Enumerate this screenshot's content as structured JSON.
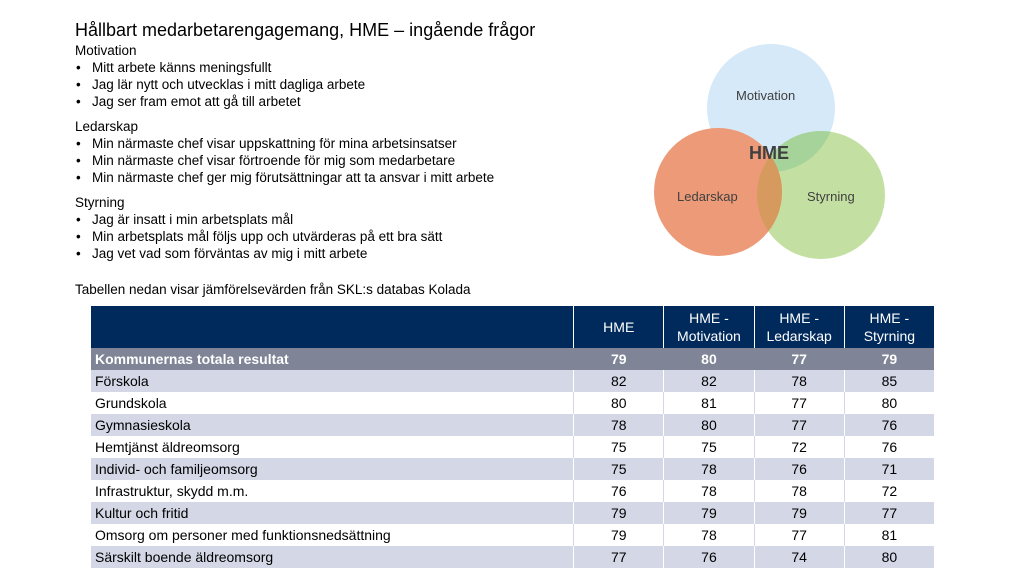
{
  "title": "Hållbart medarbetarengagemang, HME – ingående frågor",
  "sections": [
    {
      "heading": "Motivation",
      "items": [
        "Mitt arbete känns meningsfullt",
        "Jag lär nytt och utvecklas i mitt dagliga arbete",
        "Jag ser fram emot att gå till arbetet"
      ]
    },
    {
      "heading": "Ledarskap",
      "items": [
        "Min närmaste chef visar uppskattning för mina arbetsinsatser",
        "Min närmaste chef visar förtroende för mig som medarbetare",
        "Min närmaste chef ger mig förutsättningar att ta ansvar i mitt arbete"
      ]
    },
    {
      "heading": "Styrning",
      "items": [
        "Jag är insatt i min arbetsplats mål",
        "Min arbetsplats mål följs upp och utvärderas på ett bra sätt",
        "Jag vet vad som förväntas av mig i mitt arbete"
      ]
    }
  ],
  "note": "Tabellen nedan visar jämförelsevärden från SKL:s databas Kolada",
  "venn": {
    "motivation": "Motivation",
    "ledarskap": "Ledarskap",
    "styrning": "Styrning",
    "center": "HME",
    "colors": {
      "motivation": "#d6e9f8",
      "ledarskap": "#ec9a78",
      "styrning": "#c3e0a2",
      "overlap": "#d69a5e"
    }
  },
  "table": {
    "headers": [
      "",
      "HME",
      "HME - Motivation",
      "HME - Ledarskap",
      "HME - Styrning"
    ],
    "rows": [
      [
        "Kommunernas totala resultat",
        "79",
        "80",
        "77",
        "79"
      ],
      [
        "Förskola",
        "82",
        "82",
        "78",
        "85"
      ],
      [
        "Grundskola",
        "80",
        "81",
        "77",
        "80"
      ],
      [
        "Gymnasieskola",
        "78",
        "80",
        "77",
        "76"
      ],
      [
        "Hemtjänst äldreomsorg",
        "75",
        "75",
        "72",
        "76"
      ],
      [
        "Individ- och familjeomsorg",
        "75",
        "78",
        "76",
        "71"
      ],
      [
        "Infrastruktur, skydd m.m.",
        "76",
        "78",
        "78",
        "72"
      ],
      [
        "Kultur och fritid",
        "79",
        "79",
        "79",
        "77"
      ],
      [
        "Omsorg om personer med funktionsnedsättning",
        "79",
        "78",
        "77",
        "81"
      ],
      [
        "Särskilt boende äldreomsorg",
        "77",
        "76",
        "74",
        "80"
      ]
    ]
  }
}
